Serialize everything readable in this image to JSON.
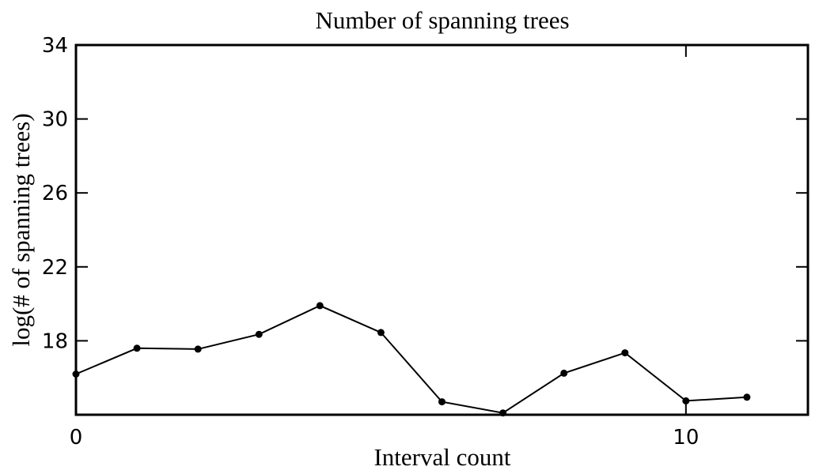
{
  "chart_data": {
    "type": "line",
    "title": "Number of spanning trees",
    "xlabel": "Interval count",
    "ylabel": "log(# of spanning trees)",
    "xlim": [
      0,
      12
    ],
    "ylim": [
      14,
      34
    ],
    "xticks": [
      0,
      10
    ],
    "yticks": [
      18,
      22,
      26,
      30,
      34
    ],
    "grid": false,
    "line_color": "#000000",
    "series": [
      {
        "x": [
          0,
          1,
          2,
          3,
          4,
          5,
          6,
          7,
          8,
          9,
          10,
          11
        ],
        "values": [
          16.2,
          17.6,
          17.55,
          18.35,
          19.9,
          18.45,
          14.7,
          14.1,
          16.25,
          17.35,
          14.75,
          14.95
        ]
      }
    ]
  }
}
